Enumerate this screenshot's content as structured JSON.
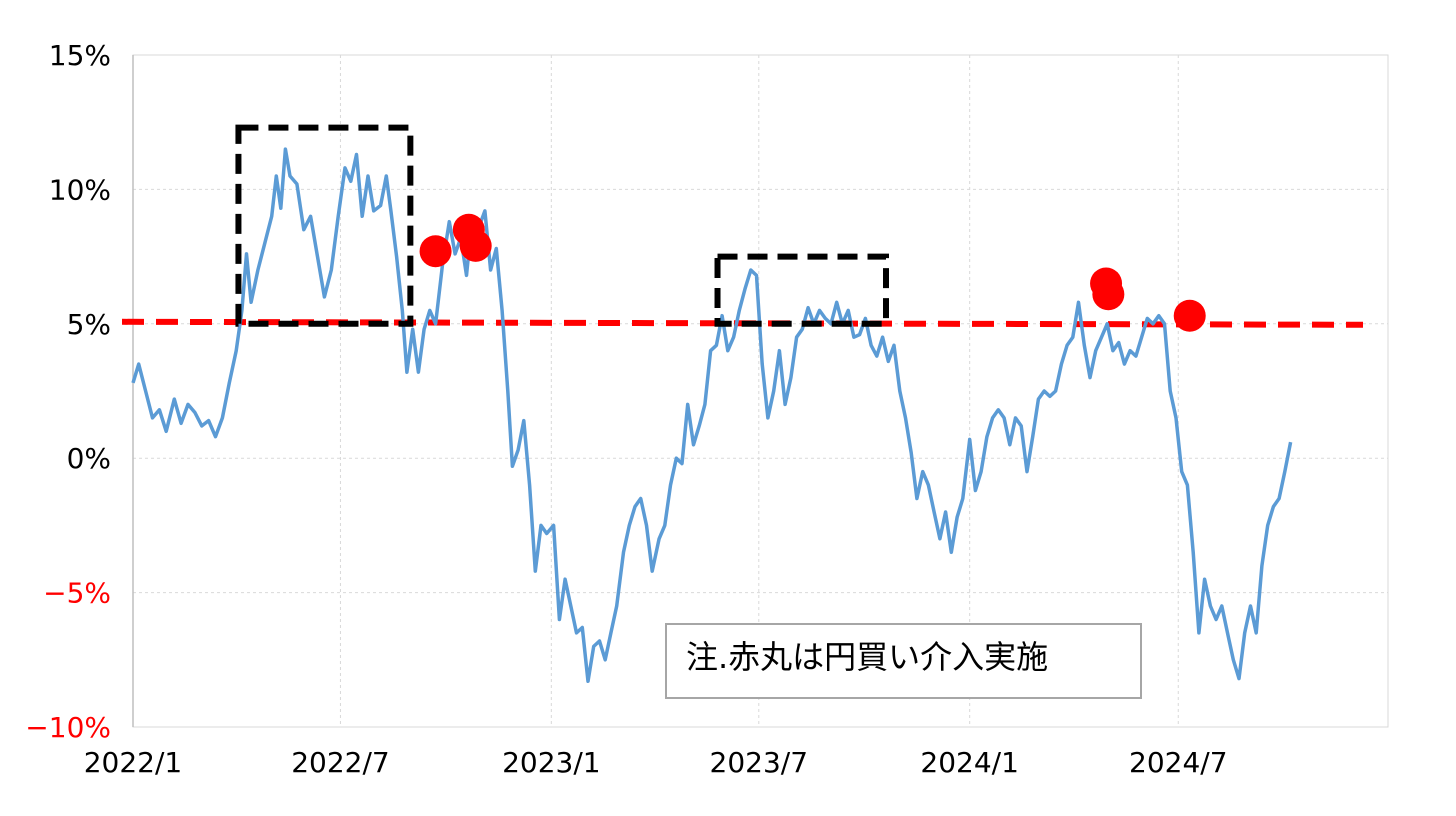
{
  "chart_data": {
    "type": "line",
    "title": "",
    "xlabel": "",
    "ylabel": "",
    "x_range": [
      "2022-01-01",
      "2024-12-31"
    ],
    "x_ticks": [
      "2022/1",
      "2022/7",
      "2023/1",
      "2023/7",
      "2024/1",
      "2024/7"
    ],
    "y_ticks": [
      {
        "value": 15,
        "label": "15%"
      },
      {
        "value": 10,
        "label": "10%"
      },
      {
        "value": 5,
        "label": "5%"
      },
      {
        "value": 0,
        "label": "0%"
      },
      {
        "value": -5,
        "label": "−5%"
      },
      {
        "value": -10,
        "label": "−10%"
      }
    ],
    "ylim": [
      -10,
      15
    ],
    "grid": true,
    "series": [
      {
        "color": "#5b9bd5",
        "points": [
          [
            "2022-01-01",
            2.8
          ],
          [
            "2022-01-06",
            3.5
          ],
          [
            "2022-01-12",
            2.5
          ],
          [
            "2022-01-18",
            1.5
          ],
          [
            "2022-01-24",
            1.8
          ],
          [
            "2022-01-30",
            1.0
          ],
          [
            "2022-02-06",
            2.2
          ],
          [
            "2022-02-12",
            1.3
          ],
          [
            "2022-02-18",
            2.0
          ],
          [
            "2022-02-24",
            1.7
          ],
          [
            "2022-03-02",
            1.2
          ],
          [
            "2022-03-08",
            1.4
          ],
          [
            "2022-03-14",
            0.8
          ],
          [
            "2022-03-20",
            1.5
          ],
          [
            "2022-03-26",
            2.8
          ],
          [
            "2022-04-01",
            4.0
          ],
          [
            "2022-04-06",
            5.5
          ],
          [
            "2022-04-10",
            7.6
          ],
          [
            "2022-04-14",
            5.8
          ],
          [
            "2022-04-20",
            7.0
          ],
          [
            "2022-04-26",
            8.0
          ],
          [
            "2022-05-02",
            9.0
          ],
          [
            "2022-05-06",
            10.5
          ],
          [
            "2022-05-10",
            9.3
          ],
          [
            "2022-05-14",
            11.5
          ],
          [
            "2022-05-18",
            10.5
          ],
          [
            "2022-05-24",
            10.2
          ],
          [
            "2022-05-30",
            8.5
          ],
          [
            "2022-06-05",
            9.0
          ],
          [
            "2022-06-11",
            7.5
          ],
          [
            "2022-06-17",
            6.0
          ],
          [
            "2022-06-23",
            7.0
          ],
          [
            "2022-06-29",
            9.0
          ],
          [
            "2022-07-05",
            10.8
          ],
          [
            "2022-07-10",
            10.3
          ],
          [
            "2022-07-15",
            11.3
          ],
          [
            "2022-07-20",
            9.0
          ],
          [
            "2022-07-25",
            10.5
          ],
          [
            "2022-07-30",
            9.2
          ],
          [
            "2022-08-05",
            9.4
          ],
          [
            "2022-08-10",
            10.5
          ],
          [
            "2022-08-14",
            9.2
          ],
          [
            "2022-08-19",
            7.5
          ],
          [
            "2022-08-24",
            5.5
          ],
          [
            "2022-08-28",
            3.2
          ],
          [
            "2022-09-02",
            4.8
          ],
          [
            "2022-09-07",
            3.2
          ],
          [
            "2022-09-12",
            4.8
          ],
          [
            "2022-09-17",
            5.5
          ],
          [
            "2022-09-22",
            5.0
          ],
          [
            "2022-09-28",
            7.2
          ],
          [
            "2022-10-04",
            8.8
          ],
          [
            "2022-10-09",
            7.6
          ],
          [
            "2022-10-14",
            8.2
          ],
          [
            "2022-10-19",
            6.8
          ],
          [
            "2022-10-24",
            9.0
          ],
          [
            "2022-10-29",
            8.5
          ],
          [
            "2022-11-04",
            9.2
          ],
          [
            "2022-11-09",
            7.0
          ],
          [
            "2022-11-14",
            7.8
          ],
          [
            "2022-11-19",
            5.5
          ],
          [
            "2022-11-24",
            2.5
          ],
          [
            "2022-11-28",
            -0.3
          ],
          [
            "2022-12-03",
            0.3
          ],
          [
            "2022-12-08",
            1.4
          ],
          [
            "2022-12-13",
            -1.0
          ],
          [
            "2022-12-18",
            -4.2
          ],
          [
            "2022-12-23",
            -2.5
          ],
          [
            "2022-12-28",
            -2.8
          ],
          [
            "2023-01-03",
            -2.5
          ],
          [
            "2023-01-08",
            -6.0
          ],
          [
            "2023-01-13",
            -4.5
          ],
          [
            "2023-01-18",
            -5.5
          ],
          [
            "2023-01-23",
            -6.5
          ],
          [
            "2023-01-28",
            -6.3
          ],
          [
            "2023-02-02",
            -8.3
          ],
          [
            "2023-02-07",
            -7.0
          ],
          [
            "2023-02-12",
            -6.8
          ],
          [
            "2023-02-17",
            -7.5
          ],
          [
            "2023-02-22",
            -6.5
          ],
          [
            "2023-02-27",
            -5.5
          ],
          [
            "2023-03-05",
            -3.5
          ],
          [
            "2023-03-10",
            -2.5
          ],
          [
            "2023-03-15",
            -1.8
          ],
          [
            "2023-03-20",
            -1.5
          ],
          [
            "2023-03-25",
            -2.5
          ],
          [
            "2023-03-30",
            -4.2
          ],
          [
            "2023-04-05",
            -3.0
          ],
          [
            "2023-04-10",
            -2.5
          ],
          [
            "2023-04-15",
            -1.0
          ],
          [
            "2023-04-20",
            0.0
          ],
          [
            "2023-04-25",
            -0.2
          ],
          [
            "2023-04-30",
            2.0
          ],
          [
            "2023-05-05",
            0.5
          ],
          [
            "2023-05-10",
            1.2
          ],
          [
            "2023-05-15",
            2.0
          ],
          [
            "2023-05-20",
            4.0
          ],
          [
            "2023-05-25",
            4.2
          ],
          [
            "2023-05-30",
            5.3
          ],
          [
            "2023-06-04",
            4.0
          ],
          [
            "2023-06-09",
            4.5
          ],
          [
            "2023-06-14",
            5.5
          ],
          [
            "2023-06-19",
            6.3
          ],
          [
            "2023-06-24",
            7.0
          ],
          [
            "2023-06-29",
            6.8
          ],
          [
            "2023-07-04",
            3.5
          ],
          [
            "2023-07-09",
            1.5
          ],
          [
            "2023-07-14",
            2.5
          ],
          [
            "2023-07-19",
            4.0
          ],
          [
            "2023-07-24",
            2.0
          ],
          [
            "2023-07-29",
            3.0
          ],
          [
            "2023-08-03",
            4.5
          ],
          [
            "2023-08-08",
            4.8
          ],
          [
            "2023-08-13",
            5.6
          ],
          [
            "2023-08-18",
            5.0
          ],
          [
            "2023-08-23",
            5.5
          ],
          [
            "2023-08-28",
            5.2
          ],
          [
            "2023-09-02",
            5.0
          ],
          [
            "2023-09-07",
            5.8
          ],
          [
            "2023-09-12",
            5.0
          ],
          [
            "2023-09-17",
            5.5
          ],
          [
            "2023-09-22",
            4.5
          ],
          [
            "2023-09-27",
            4.6
          ],
          [
            "2023-10-02",
            5.2
          ],
          [
            "2023-10-07",
            4.2
          ],
          [
            "2023-10-12",
            3.8
          ],
          [
            "2023-10-17",
            4.5
          ],
          [
            "2023-10-22",
            3.6
          ],
          [
            "2023-10-27",
            4.2
          ],
          [
            "2023-11-01",
            2.5
          ],
          [
            "2023-11-06",
            1.5
          ],
          [
            "2023-11-11",
            0.2
          ],
          [
            "2023-11-16",
            -1.5
          ],
          [
            "2023-11-21",
            -0.5
          ],
          [
            "2023-11-26",
            -1.0
          ],
          [
            "2023-12-01",
            -2.0
          ],
          [
            "2023-12-06",
            -3.0
          ],
          [
            "2023-12-11",
            -2.0
          ],
          [
            "2023-12-16",
            -3.5
          ],
          [
            "2023-12-21",
            -2.2
          ],
          [
            "2023-12-26",
            -1.5
          ],
          [
            "2024-01-01",
            0.7
          ],
          [
            "2024-01-06",
            -1.2
          ],
          [
            "2024-01-11",
            -0.5
          ],
          [
            "2024-01-16",
            0.8
          ],
          [
            "2024-01-21",
            1.5
          ],
          [
            "2024-01-26",
            1.8
          ],
          [
            "2024-01-31",
            1.5
          ],
          [
            "2024-02-05",
            0.5
          ],
          [
            "2024-02-10",
            1.5
          ],
          [
            "2024-02-15",
            1.2
          ],
          [
            "2024-02-20",
            -0.5
          ],
          [
            "2024-02-25",
            0.8
          ],
          [
            "2024-03-01",
            2.2
          ],
          [
            "2024-03-06",
            2.5
          ],
          [
            "2024-03-11",
            2.3
          ],
          [
            "2024-03-16",
            2.5
          ],
          [
            "2024-03-21",
            3.5
          ],
          [
            "2024-03-26",
            4.2
          ],
          [
            "2024-03-31",
            4.5
          ],
          [
            "2024-04-05",
            5.8
          ],
          [
            "2024-04-10",
            4.2
          ],
          [
            "2024-04-15",
            3.0
          ],
          [
            "2024-04-20",
            4.0
          ],
          [
            "2024-04-25",
            4.5
          ],
          [
            "2024-04-30",
            5.0
          ],
          [
            "2024-05-05",
            4.0
          ],
          [
            "2024-05-10",
            4.3
          ],
          [
            "2024-05-15",
            3.5
          ],
          [
            "2024-05-20",
            4.0
          ],
          [
            "2024-05-25",
            3.8
          ],
          [
            "2024-05-30",
            4.5
          ],
          [
            "2024-06-04",
            5.2
          ],
          [
            "2024-06-09",
            5.0
          ],
          [
            "2024-06-14",
            5.3
          ],
          [
            "2024-06-19",
            5.0
          ],
          [
            "2024-06-24",
            2.5
          ],
          [
            "2024-06-29",
            1.5
          ],
          [
            "2024-07-04",
            -0.5
          ],
          [
            "2024-07-09",
            -1.0
          ],
          [
            "2024-07-14",
            -3.5
          ],
          [
            "2024-07-19",
            -6.5
          ],
          [
            "2024-07-24",
            -4.5
          ],
          [
            "2024-07-29",
            -5.5
          ],
          [
            "2024-08-03",
            -6.0
          ],
          [
            "2024-08-08",
            -5.5
          ],
          [
            "2024-08-13",
            -6.5
          ],
          [
            "2024-08-18",
            -7.5
          ],
          [
            "2024-08-23",
            -8.2
          ],
          [
            "2024-08-28",
            -6.5
          ],
          [
            "2024-09-02",
            -5.5
          ],
          [
            "2024-09-07",
            -6.5
          ],
          [
            "2024-09-12",
            -4.0
          ],
          [
            "2024-09-17",
            -2.5
          ],
          [
            "2024-09-22",
            -1.8
          ],
          [
            "2024-09-27",
            -1.5
          ],
          [
            "2024-10-02",
            -0.5
          ],
          [
            "2024-10-07",
            0.6
          ]
        ]
      }
    ],
    "reference_line": {
      "value": 5,
      "color": "#ff0000",
      "style": "dashed"
    },
    "highlight_boxes": [
      {
        "x_start": "2022-04-03",
        "x_end": "2022-08-31",
        "y_low": 5.0,
        "y_high": 12.3,
        "color": "#000000"
      },
      {
        "x_start": "2023-05-26",
        "x_end": "2023-10-20",
        "y_low": 5.0,
        "y_high": 7.5,
        "color": "#000000"
      }
    ],
    "intervention_markers": [
      {
        "date": "2022-09-22",
        "value": 7.7
      },
      {
        "date": "2022-10-21",
        "value": 8.5
      },
      {
        "date": "2022-10-27",
        "value": 7.9
      },
      {
        "date": "2024-04-29",
        "value": 6.5
      },
      {
        "date": "2024-05-01",
        "value": 6.1
      },
      {
        "date": "2024-07-11",
        "value": 5.3
      }
    ],
    "marker_color": "#ff0000",
    "negative_label_color": "#ff0000",
    "annotation": {
      "text": "注.赤丸は円買い介入実施"
    }
  }
}
